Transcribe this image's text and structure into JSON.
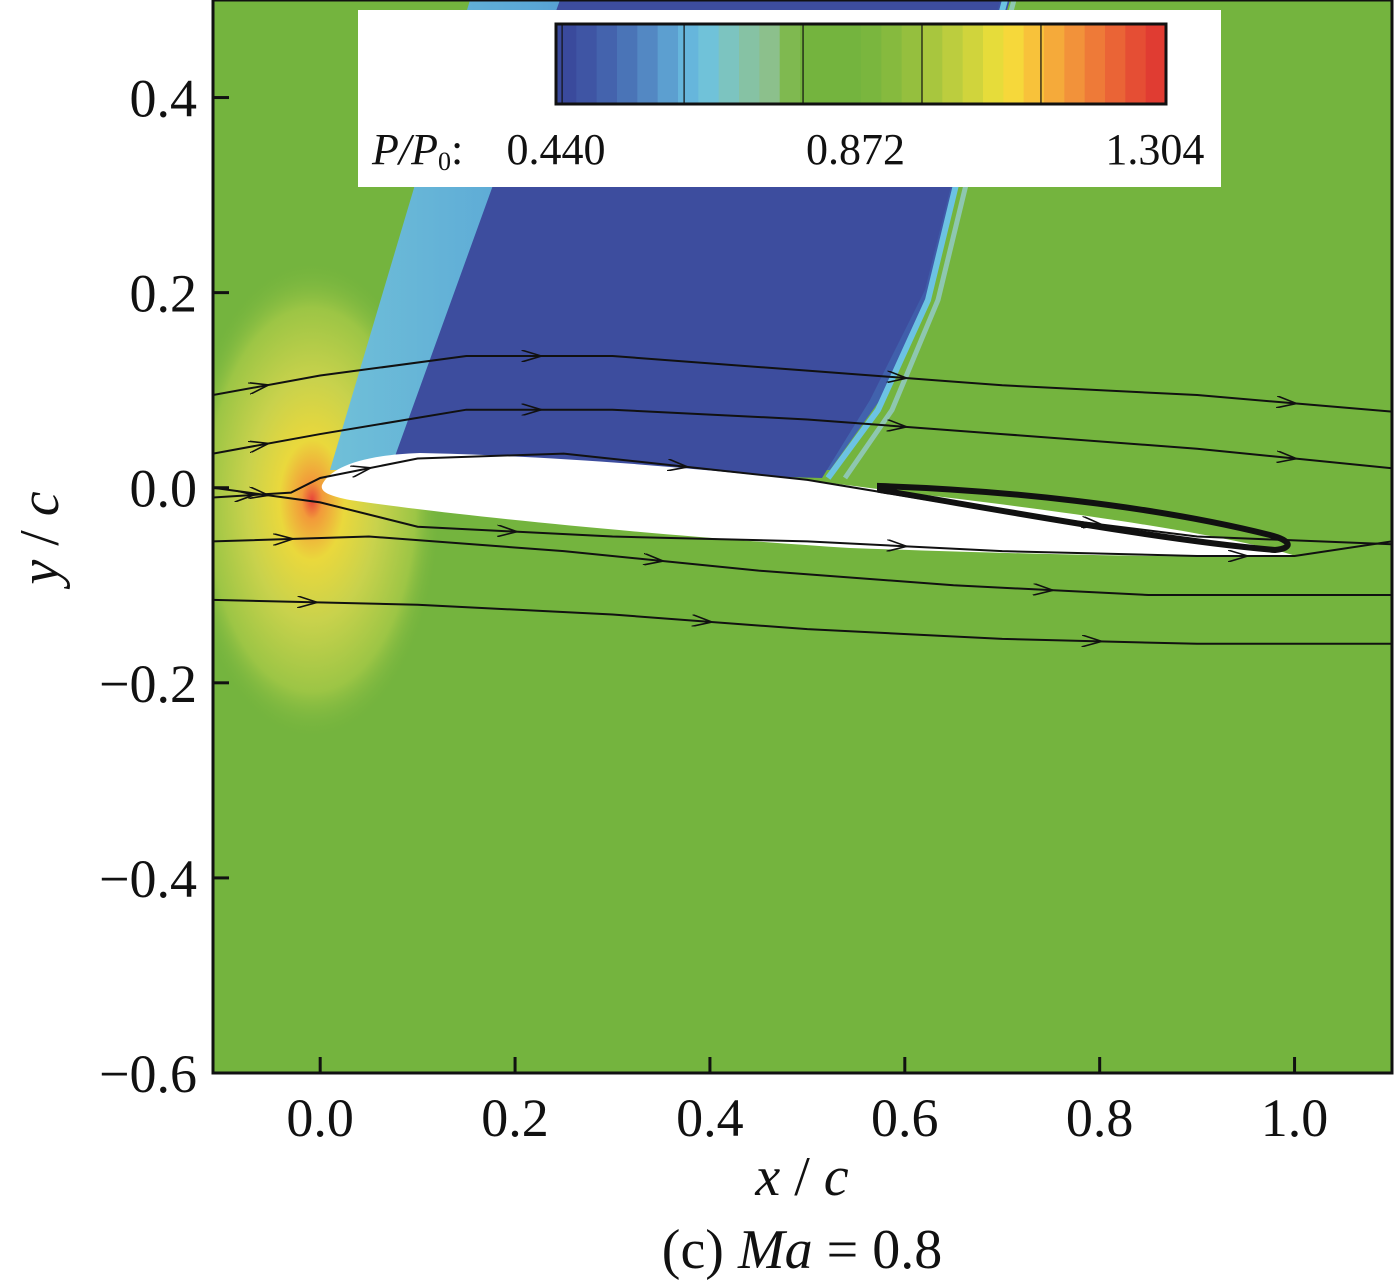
{
  "chart_data": {
    "type": "contour",
    "xlabel_var": "x",
    "ylabel_var": "y",
    "label_divisor": "c",
    "xlim": [
      -0.11,
      1.1
    ],
    "ylim": [
      -0.6,
      0.5
    ],
    "xticks": [
      0.0,
      0.2,
      0.4,
      0.6,
      0.8,
      1.0
    ],
    "xtick_labels": [
      "0.0",
      "0.2",
      "0.4",
      "0.6",
      "0.8",
      "1.0"
    ],
    "yticks": [
      0.4,
      0.2,
      0.0,
      -0.2,
      -0.4,
      -0.6
    ],
    "ytick_labels": [
      "0.4",
      "0.2",
      "0.0",
      "−0.2",
      "−0.4",
      "−0.6"
    ],
    "colorbar": {
      "variable_main": "P/P",
      "variable_sub": "0",
      "suffix": ":",
      "min": 0.44,
      "max": 1.32,
      "ticks": [
        0.44,
        0.872,
        1.304
      ],
      "tick_labels": [
        "0.440",
        "0.872",
        "1.304"
      ],
      "colors": [
        "#3a4a9c",
        "#3f55a4",
        "#4463ad",
        "#4a74b7",
        "#5388c3",
        "#5c9fd0",
        "#66b6dc",
        "#70c2d9",
        "#7cc4c0",
        "#86c2a4",
        "#8cc08c",
        "#7fb950",
        "#74b43e",
        "#74b43e",
        "#74b43e",
        "#7ab63e",
        "#86ba3e",
        "#95bf3e",
        "#a8c63e",
        "#bccd3e",
        "#d0d43c",
        "#e6dc3a",
        "#f6d83a",
        "#f8c23a",
        "#f5aa3a",
        "#f2923a",
        "#ee7a38",
        "#ea6436",
        "#e54e34",
        "#e03c32"
      ]
    },
    "streamlines": [
      [
        [
          -0.11,
          0.095
        ],
        [
          0.0,
          0.115
        ],
        [
          0.15,
          0.135
        ],
        [
          0.3,
          0.135
        ],
        [
          0.5,
          0.12
        ],
        [
          0.7,
          0.105
        ],
        [
          0.9,
          0.095
        ],
        [
          1.1,
          0.078
        ]
      ],
      [
        [
          -0.11,
          0.035
        ],
        [
          0.0,
          0.055
        ],
        [
          0.15,
          0.08
        ],
        [
          0.3,
          0.08
        ],
        [
          0.5,
          0.07
        ],
        [
          0.7,
          0.055
        ],
        [
          0.9,
          0.04
        ],
        [
          1.1,
          0.02
        ]
      ],
      [
        [
          -0.11,
          -0.01
        ],
        [
          -0.03,
          -0.005
        ],
        [
          0.0,
          0.01
        ],
        [
          0.1,
          0.03
        ],
        [
          0.25,
          0.035
        ],
        [
          0.5,
          0.008
        ],
        [
          0.7,
          -0.025
        ],
        [
          0.9,
          -0.05
        ],
        [
          1.1,
          -0.058
        ]
      ],
      [
        [
          -0.11,
          -0.055
        ],
        [
          0.05,
          -0.05
        ],
        [
          0.25,
          -0.065
        ],
        [
          0.45,
          -0.085
        ],
        [
          0.65,
          -0.1
        ],
        [
          0.85,
          -0.11
        ],
        [
          1.1,
          -0.11
        ]
      ],
      [
        [
          -0.11,
          -0.115
        ],
        [
          0.1,
          -0.12
        ],
        [
          0.3,
          -0.13
        ],
        [
          0.5,
          -0.145
        ],
        [
          0.7,
          -0.155
        ],
        [
          0.9,
          -0.16
        ],
        [
          1.1,
          -0.16
        ]
      ],
      [
        [
          -0.11,
          0.0
        ],
        [
          0.0,
          -0.015
        ],
        [
          0.1,
          -0.04
        ],
        [
          0.3,
          -0.05
        ],
        [
          0.5,
          -0.055
        ],
        [
          0.7,
          -0.065
        ],
        [
          0.9,
          -0.07
        ],
        [
          1.0,
          -0.07
        ],
        [
          1.1,
          -0.055
        ]
      ]
    ],
    "caption_prefix": "(c)",
    "caption_var": "Ma",
    "caption_value": "= 0.8"
  }
}
